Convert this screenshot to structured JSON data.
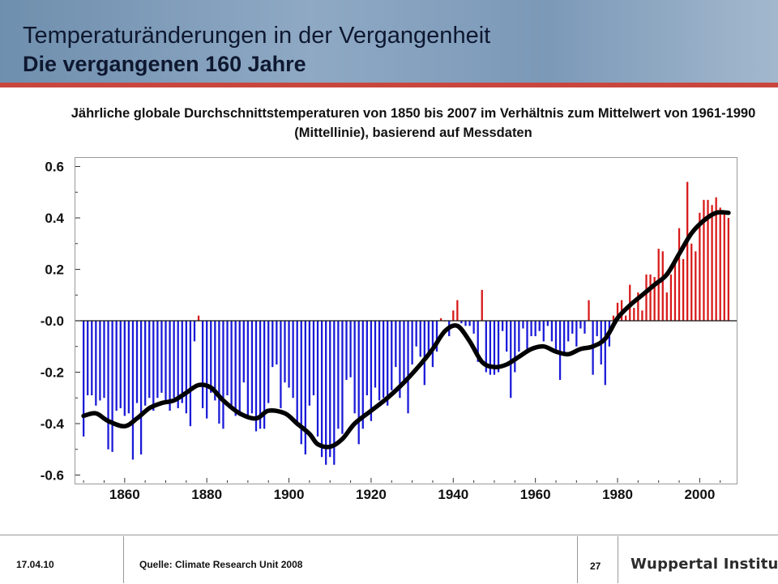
{
  "header": {
    "title_line1": "Temperaturänderungen  in der Vergangenheit",
    "title_line2": "Die vergangenen 160 Jahre"
  },
  "subtitle": "Jährliche globale Durchschnittstemperaturen von 1850 bis 2007 im Verhältnis zum Mittelwert von 1961-1990 (Mittellinie), basierend auf Messdaten",
  "footer": {
    "date": "17.04.10",
    "source": "Quelle: Climate Research Unit 2008",
    "page": "27",
    "logo": "Wuppertal Institut"
  },
  "colors": {
    "negative": "#1a1ad8",
    "positive": "#d81a1a",
    "smooth": "#000000",
    "header_bar": "#c9463d"
  },
  "chart_data": {
    "type": "bar",
    "xlim": [
      1848,
      2009
    ],
    "ylim": [
      -0.63,
      0.63
    ],
    "grid": false,
    "x_ticks": [
      1860,
      1880,
      1900,
      1920,
      1940,
      1960,
      1980,
      2000
    ],
    "y_ticks": [
      0.6,
      0.4,
      0.2,
      0.0,
      -0.2,
      -0.4,
      -0.6
    ],
    "y_tick_labels": [
      "0.6",
      "0.4",
      "0.2",
      "-0.0",
      "-0.2",
      "-0.4",
      "-0.6"
    ],
    "years_start": 1850,
    "values": [
      -0.45,
      -0.29,
      -0.29,
      -0.33,
      -0.31,
      -0.3,
      -0.5,
      -0.51,
      -0.35,
      -0.34,
      -0.37,
      -0.36,
      -0.54,
      -0.32,
      -0.52,
      -0.33,
      -0.3,
      -0.35,
      -0.3,
      -0.28,
      -0.31,
      -0.35,
      -0.3,
      -0.34,
      -0.32,
      -0.36,
      -0.41,
      -0.08,
      0.02,
      -0.34,
      -0.38,
      -0.28,
      -0.31,
      -0.4,
      -0.42,
      -0.29,
      -0.33,
      -0.37,
      -0.37,
      -0.24,
      -0.38,
      -0.36,
      -0.43,
      -0.42,
      -0.42,
      -0.32,
      -0.18,
      -0.17,
      -0.34,
      -0.24,
      -0.26,
      -0.3,
      -0.41,
      -0.48,
      -0.52,
      -0.33,
      -0.29,
      -0.45,
      -0.53,
      -0.56,
      -0.53,
      -0.56,
      -0.42,
      -0.44,
      -0.23,
      -0.22,
      -0.36,
      -0.48,
      -0.42,
      -0.29,
      -0.39,
      -0.26,
      -0.31,
      -0.3,
      -0.33,
      -0.27,
      -0.18,
      -0.3,
      -0.25,
      -0.36,
      -0.17,
      -0.1,
      -0.14,
      -0.25,
      -0.14,
      -0.18,
      -0.12,
      0.01,
      0.0,
      -0.06,
      0.04,
      0.08,
      -0.01,
      -0.02,
      -0.02,
      -0.05,
      -0.16,
      0.12,
      -0.2,
      -0.21,
      -0.21,
      -0.2,
      -0.04,
      -0.12,
      -0.3,
      -0.2,
      -0.12,
      -0.03,
      -0.12,
      -0.06,
      -0.06,
      -0.04,
      -0.08,
      -0.02,
      -0.08,
      -0.12,
      -0.23,
      -0.13,
      -0.08,
      -0.05,
      -0.1,
      -0.03,
      -0.05,
      0.08,
      -0.21,
      -0.06,
      -0.17,
      -0.25,
      -0.1,
      0.02,
      0.07,
      0.08,
      0.02,
      0.14,
      0.05,
      0.11,
      0.04,
      0.18,
      0.18,
      0.17,
      0.28,
      0.27,
      0.11,
      0.18,
      0.24,
      0.36,
      0.24,
      0.54,
      0.3,
      0.27,
      0.42,
      0.47,
      0.47,
      0.45,
      0.48,
      0.44,
      0.42,
      0.4
    ],
    "smooth_series": {
      "x": [
        1850,
        1853,
        1856,
        1860,
        1863,
        1866,
        1869,
        1872,
        1875,
        1878,
        1881,
        1884,
        1888,
        1892,
        1895,
        1899,
        1902,
        1905,
        1907,
        1910,
        1913,
        1916,
        1920,
        1924,
        1928,
        1932,
        1935,
        1938,
        1941,
        1944,
        1947,
        1950,
        1953,
        1956,
        1959,
        1962,
        1965,
        1968,
        1971,
        1974,
        1977,
        1980,
        1983,
        1986,
        1989,
        1992,
        1995,
        1998,
        2001,
        2004,
        2007
      ],
      "y": [
        -0.37,
        -0.36,
        -0.39,
        -0.41,
        -0.38,
        -0.34,
        -0.32,
        -0.31,
        -0.28,
        -0.25,
        -0.26,
        -0.31,
        -0.36,
        -0.38,
        -0.35,
        -0.36,
        -0.4,
        -0.44,
        -0.48,
        -0.49,
        -0.46,
        -0.4,
        -0.35,
        -0.3,
        -0.24,
        -0.17,
        -0.11,
        -0.04,
        -0.02,
        -0.08,
        -0.16,
        -0.18,
        -0.17,
        -0.14,
        -0.11,
        -0.1,
        -0.12,
        -0.13,
        -0.11,
        -0.1,
        -0.07,
        0.01,
        0.06,
        0.1,
        0.14,
        0.18,
        0.26,
        0.34,
        0.39,
        0.42,
        0.42
      ]
    }
  }
}
